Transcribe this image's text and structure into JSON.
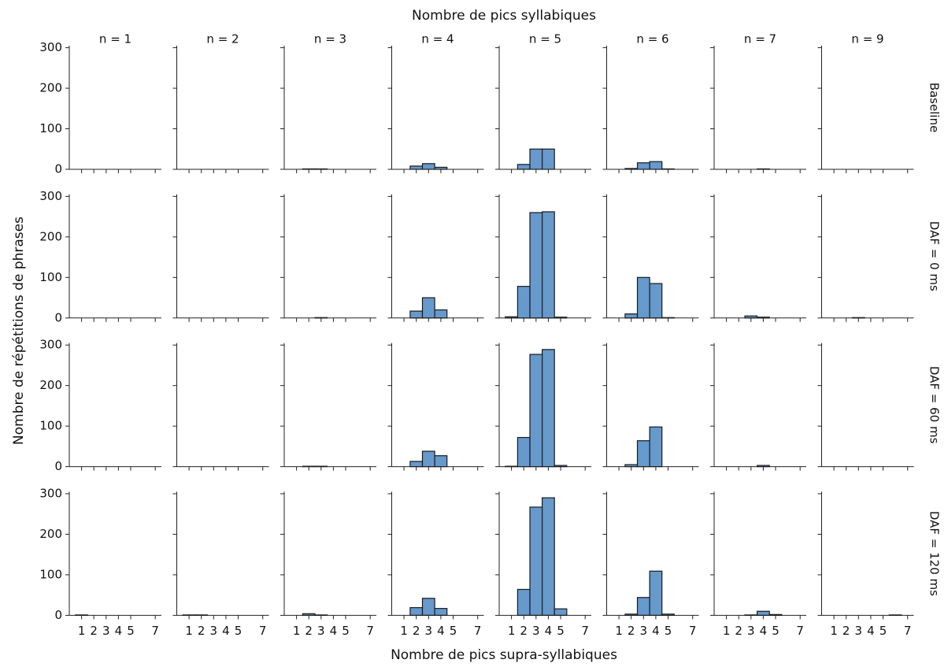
{
  "chart_data": {
    "type": "histogram",
    "title": "Nombre de pics syllabiques",
    "xlabel": "Nombre de pics supra-syllabiques",
    "ylabel": "Nombre de répétitions de phrases",
    "columns": [
      "n = 1",
      "n = 2",
      "n = 3",
      "n = 4",
      "n = 5",
      "n = 6",
      "n = 7",
      "n = 9"
    ],
    "rows": [
      "Baseline",
      "DAF = 0 ms",
      "DAF = 60 ms",
      "DAF = 120 ms"
    ],
    "bins": [
      0.5,
      1.5,
      2.5,
      3.5,
      4.5,
      5.5,
      6.5,
      7.5
    ],
    "xlim": [
      0,
      7.5
    ],
    "xticks": [
      1,
      2,
      3,
      4,
      5,
      7
    ],
    "ylim": [
      0,
      305
    ],
    "yticks": [
      0,
      100,
      200,
      300
    ],
    "color": "#6699cc",
    "edgecolor": "#1a1a1a",
    "panels": [
      [
        [
          0,
          0,
          0,
          0,
          0,
          0,
          0
        ],
        [
          0,
          0,
          0,
          0,
          0,
          0,
          0
        ],
        [
          0,
          1,
          1,
          0,
          0,
          0,
          0
        ],
        [
          0,
          8,
          14,
          5,
          0,
          0,
          0
        ],
        [
          0,
          12,
          50,
          50,
          0,
          0,
          0
        ],
        [
          0,
          2,
          16,
          19,
          1,
          0,
          0
        ],
        [
          0,
          0,
          0,
          1,
          0,
          0,
          0
        ],
        [
          0,
          0,
          0,
          0,
          0,
          0,
          0
        ]
      ],
      [
        [
          0,
          0,
          0,
          0,
          0,
          0,
          0
        ],
        [
          0,
          0,
          0,
          0,
          0,
          0,
          0
        ],
        [
          0,
          0,
          1,
          0,
          0,
          0,
          0
        ],
        [
          0,
          17,
          50,
          20,
          0,
          0,
          0
        ],
        [
          3,
          78,
          260,
          262,
          2,
          0,
          0
        ],
        [
          0,
          10,
          100,
          85,
          1,
          0,
          0
        ],
        [
          0,
          0,
          5,
          2,
          0,
          0,
          0
        ],
        [
          0,
          0,
          1,
          0,
          0,
          0,
          0
        ]
      ],
      [
        [
          0,
          0,
          0,
          0,
          0,
          0,
          0
        ],
        [
          0,
          0,
          0,
          0,
          0,
          0,
          0
        ],
        [
          0,
          1,
          1,
          0,
          0,
          0,
          0
        ],
        [
          0,
          13,
          38,
          27,
          0,
          0,
          0
        ],
        [
          1,
          72,
          277,
          289,
          3,
          0,
          0
        ],
        [
          0,
          5,
          64,
          98,
          0,
          0,
          0
        ],
        [
          0,
          0,
          0,
          3,
          0,
          0,
          0
        ],
        [
          0,
          0,
          0,
          0,
          0,
          0,
          0
        ]
      ],
      [
        [
          1,
          0,
          0,
          0,
          0,
          0,
          0
        ],
        [
          1,
          1,
          0,
          0,
          0,
          0,
          0
        ],
        [
          0,
          4,
          1,
          0,
          0,
          0,
          0
        ],
        [
          0,
          19,
          42,
          17,
          0,
          0,
          0
        ],
        [
          0,
          64,
          267,
          290,
          16,
          0,
          0
        ],
        [
          0,
          3,
          44,
          109,
          3,
          0,
          0
        ],
        [
          0,
          0,
          1,
          10,
          2,
          0,
          0
        ],
        [
          0,
          0,
          0,
          0,
          0,
          1,
          0
        ]
      ]
    ]
  }
}
